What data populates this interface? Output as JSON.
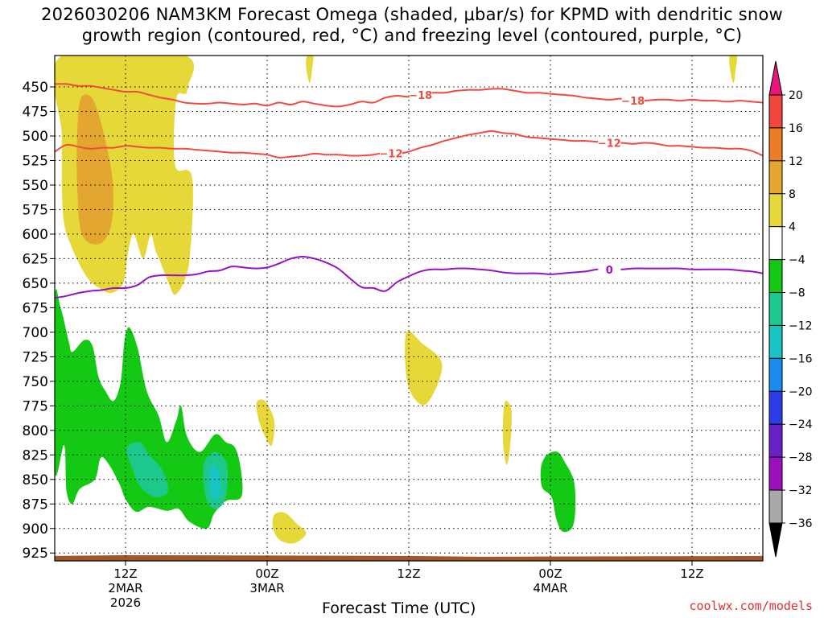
{
  "chart_data": {
    "type": "heatmap",
    "title_line1": "2026030206 NAM3KM Forecast Omega (shaded, μbar/s) for KPMD with dendritic snow",
    "title_line2": "growth region (contoured, red, °C) and freezing level (contoured, purple, °C)",
    "xlabel": "Forecast Time (UTC)",
    "credit": "coolwx.com/models",
    "x_range_hours": [
      0,
      60
    ],
    "y_range_hpa": [
      418,
      933
    ],
    "y_ticks": [
      450,
      475,
      500,
      525,
      550,
      575,
      600,
      625,
      650,
      675,
      700,
      725,
      750,
      775,
      800,
      825,
      850,
      875,
      900,
      925
    ],
    "x_ticks": [
      {
        "hour": 6,
        "lines": [
          "12Z",
          "2MAR",
          "2026"
        ]
      },
      {
        "hour": 18,
        "lines": [
          "00Z",
          "3MAR"
        ]
      },
      {
        "hour": 30,
        "lines": [
          "12Z"
        ]
      },
      {
        "hour": 42,
        "lines": [
          "00Z",
          "4MAR"
        ]
      },
      {
        "hour": 54,
        "lines": [
          "12Z"
        ]
      }
    ],
    "colorbar": {
      "labels": [
        "20",
        "16",
        "12",
        "8",
        "4",
        "−4",
        "−8",
        "−12",
        "−16",
        "−20",
        "−24",
        "−28",
        "−32",
        "−36"
      ],
      "bins": [
        {
          "lo": 20,
          "hi": 999,
          "color": "#e8167a"
        },
        {
          "lo": 16,
          "hi": 20,
          "color": "#f0463c"
        },
        {
          "lo": 12,
          "hi": 16,
          "color": "#ee7c24"
        },
        {
          "lo": 8,
          "hi": 12,
          "color": "#e3a631"
        },
        {
          "lo": 4,
          "hi": 8,
          "color": "#e6d838"
        },
        {
          "lo": -4,
          "hi": 4,
          "color": "#ffffff"
        },
        {
          "lo": -8,
          "hi": -4,
          "color": "#13c913"
        },
        {
          "lo": -12,
          "hi": -8,
          "color": "#1ec88c"
        },
        {
          "lo": -16,
          "hi": -12,
          "color": "#19c4c4"
        },
        {
          "lo": -20,
          "hi": -16,
          "color": "#1a8cf0"
        },
        {
          "lo": -24,
          "hi": -20,
          "color": "#2a3ce6"
        },
        {
          "lo": -28,
          "hi": -24,
          "color": "#6a20c8"
        },
        {
          "lo": -32,
          "hi": -28,
          "color": "#9c10c0"
        },
        {
          "lo": -36,
          "hi": -32,
          "color": "#a8a8a8"
        },
        {
          "lo": -999,
          "hi": -36,
          "color": "#000000"
        }
      ]
    },
    "contours": [
      {
        "name": "minus18",
        "label": "−18",
        "color": "#ef4b40",
        "hours": [
          0,
          1,
          2,
          3,
          4,
          5,
          6,
          7,
          8,
          9,
          10,
          11,
          12,
          13,
          14,
          15,
          16,
          17,
          18,
          19,
          20,
          21,
          22,
          23,
          24,
          25,
          26,
          27,
          28,
          29,
          30,
          31,
          32,
          33,
          34,
          35,
          36,
          37,
          38,
          39,
          40,
          41,
          42,
          43,
          44,
          45,
          46,
          47,
          48,
          49,
          50,
          51,
          52,
          53,
          54,
          55,
          56,
          57,
          58,
          59,
          60
        ],
        "hpa": [
          447,
          447,
          449,
          449,
          451,
          453,
          455,
          455,
          458,
          461,
          463,
          466,
          467,
          467,
          466,
          467,
          468,
          467,
          469,
          466,
          468,
          465,
          467,
          469,
          470,
          468,
          465,
          466,
          461,
          459,
          460,
          458,
          456,
          456,
          454,
          453,
          453,
          452,
          452,
          454,
          456,
          456,
          457,
          458,
          459,
          461,
          462,
          463,
          462,
          464,
          464,
          463,
          463,
          464,
          463,
          464,
          464,
          465,
          464,
          465,
          466
        ],
        "label_at": [
          31,
          49
        ]
      },
      {
        "name": "minus12",
        "label": "−12",
        "color": "#ef4b40",
        "hours": [
          0,
          1,
          2,
          3,
          4,
          5,
          6,
          7,
          8,
          9,
          10,
          11,
          12,
          13,
          14,
          15,
          16,
          17,
          18,
          19,
          20,
          21,
          22,
          23,
          24,
          25,
          26,
          27,
          28,
          29,
          30,
          31,
          32,
          33,
          34,
          35,
          36,
          37,
          38,
          39,
          40,
          41,
          42,
          43,
          44,
          45,
          46,
          47,
          48,
          49,
          50,
          51,
          52,
          53,
          54,
          55,
          56,
          57,
          58,
          59,
          60
        ],
        "hpa": [
          516,
          509,
          511,
          513,
          512,
          512,
          510,
          511,
          512,
          512,
          513,
          513,
          514,
          515,
          516,
          517,
          517,
          518,
          519,
          522,
          521,
          520,
          518,
          519,
          519,
          520,
          520,
          519,
          517,
          518,
          516,
          512,
          509,
          505,
          502,
          499,
          497,
          495,
          497,
          498,
          501,
          502,
          503,
          504,
          505,
          505,
          506,
          507,
          507,
          508,
          507,
          508,
          510,
          510,
          511,
          512,
          512,
          513,
          513,
          515,
          520
        ],
        "label_at": [
          28.5,
          47
        ]
      }
    ],
    "freezing_level": {
      "label": "0",
      "color": "#9a10c8",
      "hours": [
        0,
        1,
        2,
        3,
        4,
        5,
        6,
        7,
        8,
        9,
        10,
        11,
        12,
        13,
        14,
        15,
        16,
        17,
        18,
        19,
        20,
        21,
        22,
        23,
        24,
        25,
        26,
        27,
        28,
        29,
        30,
        31,
        32,
        33,
        34,
        35,
        36,
        37,
        38,
        39,
        40,
        41,
        42,
        43,
        44,
        45,
        46,
        47,
        48,
        49,
        50,
        51,
        52,
        53,
        54,
        55,
        56,
        57,
        58,
        59,
        60
      ],
      "hpa": [
        665,
        663,
        660,
        658,
        657,
        655,
        655,
        652,
        644,
        642,
        642,
        642,
        641,
        638,
        637,
        633,
        634,
        635,
        634,
        630,
        625,
        623,
        625,
        629,
        635,
        645,
        654,
        655,
        658,
        649,
        643,
        638,
        636,
        636,
        635,
        635,
        636,
        637,
        639,
        640,
        640,
        640,
        641,
        640,
        639,
        638,
        636,
        636,
        636,
        635,
        635,
        635,
        635,
        635,
        636,
        636,
        636,
        636,
        637,
        638,
        640
      ],
      "label_at": 47
    },
    "shaded_regions": [
      {
        "name": "upper-yellow-core",
        "value": 6,
        "outline": [
          [
            0.6,
            418
          ],
          [
            11,
            418
          ],
          [
            11,
            455
          ],
          [
            10.2,
            460
          ],
          [
            10.2,
            530
          ],
          [
            11.5,
            540
          ],
          [
            11.5,
            610
          ],
          [
            11.2,
            640
          ],
          [
            10.2,
            660
          ],
          [
            9,
            630
          ],
          [
            8.2,
            600
          ],
          [
            7.5,
            625
          ],
          [
            6.7,
            600
          ],
          [
            6.2,
            620
          ],
          [
            5.8,
            650
          ],
          [
            4.8,
            660
          ],
          [
            3.8,
            655
          ],
          [
            2.8,
            645
          ],
          [
            1.5,
            615
          ],
          [
            0.7,
            580
          ],
          [
            0.6,
            500
          ]
        ]
      },
      {
        "name": "upper-yellow-right",
        "value": 6,
        "outline": [
          [
            7.5,
            418
          ],
          [
            11.2,
            418
          ],
          [
            11.2,
            455
          ],
          [
            10.3,
            462
          ],
          [
            10.2,
            530
          ],
          [
            11.6,
            540
          ],
          [
            11.6,
            600
          ],
          [
            11.2,
            630
          ],
          [
            10.2,
            662
          ],
          [
            9.3,
            635
          ],
          [
            8.4,
            610
          ],
          [
            7.6,
            545
          ],
          [
            7.6,
            460
          ]
        ]
      },
      {
        "name": "upper-orange-core",
        "value": 10,
        "outline": [
          [
            2.2,
            462
          ],
          [
            3.2,
            462
          ],
          [
            4.1,
            495
          ],
          [
            4.9,
            545
          ],
          [
            4.8,
            590
          ],
          [
            3.8,
            610
          ],
          [
            2.3,
            600
          ],
          [
            1.9,
            550
          ],
          [
            1.9,
            500
          ]
        ]
      },
      {
        "name": "yellow-blip-top-mid",
        "value": 5,
        "outline": [
          [
            21.4,
            418
          ],
          [
            21.9,
            418
          ],
          [
            21.8,
            433
          ],
          [
            21.6,
            446
          ],
          [
            21.3,
            430
          ]
        ]
      },
      {
        "name": "yellow-blip-top-right",
        "value": 5,
        "outline": [
          [
            57.2,
            418
          ],
          [
            57.8,
            418
          ],
          [
            57.7,
            432
          ],
          [
            57.5,
            446
          ],
          [
            57.2,
            430
          ]
        ]
      },
      {
        "name": "yellow-mid-1",
        "value": 5,
        "outline": [
          [
            29.8,
            700
          ],
          [
            31.2,
            712
          ],
          [
            32.7,
            728
          ],
          [
            32.6,
            748
          ],
          [
            31.5,
            773
          ],
          [
            30.5,
            768
          ],
          [
            29.8,
            745
          ]
        ]
      },
      {
        "name": "yellow-mid-2",
        "value": 5,
        "outline": [
          [
            38.2,
            770
          ],
          [
            38.7,
            780
          ],
          [
            38.6,
            815
          ],
          [
            38.3,
            835
          ],
          [
            38,
            815
          ],
          [
            38,
            785
          ]
        ]
      },
      {
        "name": "yellow-low-1",
        "value": 5,
        "outline": [
          [
            17.1,
            772
          ],
          [
            17.8,
            770
          ],
          [
            18.6,
            790
          ],
          [
            18.4,
            815
          ],
          [
            17.9,
            808
          ],
          [
            17.3,
            790
          ]
        ]
      },
      {
        "name": "yellow-low-2",
        "value": 5,
        "outline": [
          [
            18.6,
            886
          ],
          [
            19.5,
            884
          ],
          [
            20.5,
            895
          ],
          [
            21.3,
            905
          ],
          [
            20.3,
            915
          ],
          [
            19.1,
            912
          ],
          [
            18.5,
            900
          ]
        ]
      },
      {
        "name": "green-main",
        "value": -6,
        "outline": [
          [
            0,
            668
          ],
          [
            0.5,
            675
          ],
          [
            1.2,
            710
          ],
          [
            1.5,
            720
          ],
          [
            2.5,
            708
          ],
          [
            3.2,
            714
          ],
          [
            3.7,
            745
          ],
          [
            4.3,
            760
          ],
          [
            5,
            770
          ],
          [
            5.6,
            750
          ],
          [
            5.9,
            710
          ],
          [
            6.3,
            695
          ],
          [
            7,
            715
          ],
          [
            7.8,
            760
          ],
          [
            8.8,
            785
          ],
          [
            9.5,
            812
          ],
          [
            10.3,
            790
          ],
          [
            10.7,
            775
          ],
          [
            11.2,
            806
          ],
          [
            12.3,
            822
          ],
          [
            13.6,
            804
          ],
          [
            14.5,
            812
          ],
          [
            15.3,
            818
          ],
          [
            15.8,
            842
          ],
          [
            15.8,
            868
          ],
          [
            14.5,
            872
          ],
          [
            13.5,
            885
          ],
          [
            12.9,
            900
          ],
          [
            11.4,
            893
          ],
          [
            10.5,
            880
          ],
          [
            9.5,
            882
          ],
          [
            8,
            878
          ],
          [
            6.9,
            883
          ],
          [
            6,
            870
          ],
          [
            5.5,
            855
          ],
          [
            4.6,
            835
          ],
          [
            3.9,
            828
          ],
          [
            3.4,
            850
          ],
          [
            2.1,
            860
          ],
          [
            1.5,
            875
          ],
          [
            1,
            862
          ],
          [
            0.8,
            815
          ],
          [
            0,
            840
          ]
        ]
      },
      {
        "name": "green-right-blob",
        "value": -6,
        "outline": [
          [
            41.2,
            838
          ],
          [
            41.7,
            825
          ],
          [
            42.6,
            822
          ],
          [
            43.2,
            832
          ],
          [
            44,
            852
          ],
          [
            44.1,
            883
          ],
          [
            43.8,
            900
          ],
          [
            43,
            903
          ],
          [
            42.5,
            890
          ],
          [
            42.1,
            868
          ],
          [
            41.3,
            858
          ]
        ]
      },
      {
        "name": "teal-core-1",
        "value": -10,
        "outline": [
          [
            6.1,
            818
          ],
          [
            7.2,
            812
          ],
          [
            8,
            825
          ],
          [
            9.1,
            840
          ],
          [
            9.6,
            862
          ],
          [
            8.5,
            868
          ],
          [
            7.3,
            858
          ],
          [
            6.6,
            840
          ]
        ]
      },
      {
        "name": "teal-core-2",
        "value": -10,
        "outline": [
          [
            12.7,
            832
          ],
          [
            13.6,
            822
          ],
          [
            14.6,
            835
          ],
          [
            14.5,
            868
          ],
          [
            13.7,
            880
          ],
          [
            12.9,
            872
          ],
          [
            12.6,
            850
          ]
        ]
      },
      {
        "name": "cyan-core-2",
        "value": -14,
        "outline": [
          [
            13.1,
            842
          ],
          [
            13.6,
            835
          ],
          [
            14,
            848
          ],
          [
            14,
            865
          ],
          [
            13.6,
            872
          ],
          [
            13.2,
            862
          ]
        ]
      }
    ],
    "ground_band": {
      "color": "#a0582a",
      "top_hpa": 928,
      "bottom_hpa": 933
    }
  }
}
